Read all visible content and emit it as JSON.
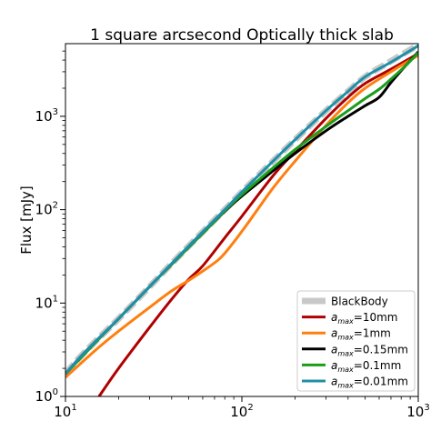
{
  "chart_data": {
    "type": "line",
    "title": "1 square arcsecond Optically thick slab",
    "xlabel": "",
    "ylabel": "Flux [mJy]",
    "xscale": "log",
    "yscale": "log",
    "xlim": [
      10,
      1000
    ],
    "ylim": [
      1,
      6000
    ],
    "x_ticks": [
      {
        "value": 10,
        "base": "10",
        "exp": "1"
      },
      {
        "value": 100,
        "base": "10",
        "exp": "2"
      },
      {
        "value": 1000,
        "base": "10",
        "exp": "3"
      }
    ],
    "y_ticks": [
      {
        "value": 1,
        "base": "10",
        "exp": "0"
      },
      {
        "value": 10,
        "base": "10",
        "exp": "1"
      },
      {
        "value": 100,
        "base": "10",
        "exp": "2"
      },
      {
        "value": 1000,
        "base": "10",
        "exp": "3"
      }
    ],
    "grid": false,
    "legend_position": "lower-right",
    "series": [
      {
        "name": "BlackBody",
        "label_text": "BlackBody",
        "color": "#c8c8c8",
        "style": "dashed-thick",
        "points": [
          [
            10,
            1.75
          ],
          [
            12,
            2.6
          ],
          [
            15,
            4.0
          ],
          [
            20,
            6.8
          ],
          [
            30,
            15
          ],
          [
            40,
            26.5
          ],
          [
            60,
            58
          ],
          [
            80,
            100
          ],
          [
            100,
            155
          ],
          [
            150,
            330
          ],
          [
            200,
            560
          ],
          [
            300,
            1150
          ],
          [
            400,
            1850
          ],
          [
            500,
            2650
          ],
          [
            700,
            3900
          ],
          [
            1000,
            5800
          ]
        ]
      },
      {
        "name": "a_max=10mm",
        "label_prefix": "a",
        "label_sub": "max",
        "label_suffix": "=10mm",
        "color": "#b00000",
        "style": "solid",
        "points": [
          [
            15.5,
            1.0
          ],
          [
            20,
            2.0
          ],
          [
            30,
            5.5
          ],
          [
            40,
            11
          ],
          [
            50,
            18
          ],
          [
            60,
            25
          ],
          [
            80,
            50
          ],
          [
            100,
            85
          ],
          [
            150,
            230
          ],
          [
            200,
            420
          ],
          [
            300,
            950
          ],
          [
            400,
            1600
          ],
          [
            500,
            2250
          ],
          [
            700,
            3200
          ],
          [
            1000,
            4700
          ]
        ]
      },
      {
        "name": "a_max=1mm",
        "label_prefix": "a",
        "label_sub": "max",
        "label_suffix": "=1mm",
        "color": "#ff7f0e",
        "style": "solid",
        "points": [
          [
            10,
            1.6
          ],
          [
            15,
            3.2
          ],
          [
            20,
            5.0
          ],
          [
            30,
            9.0
          ],
          [
            40,
            13.5
          ],
          [
            50,
            17.5
          ],
          [
            60,
            22
          ],
          [
            75,
            30
          ],
          [
            90,
            45
          ],
          [
            110,
            75
          ],
          [
            150,
            170
          ],
          [
            200,
            330
          ],
          [
            300,
            800
          ],
          [
            400,
            1400
          ],
          [
            500,
            2000
          ],
          [
            700,
            3000
          ],
          [
            1000,
            4500
          ]
        ]
      },
      {
        "name": "a_max=0.15mm",
        "label_prefix": "a",
        "label_sub": "max",
        "label_suffix": "=0.15mm",
        "color": "#000000",
        "style": "solid",
        "points": [
          [
            10,
            1.75
          ],
          [
            15,
            3.9
          ],
          [
            20,
            6.8
          ],
          [
            30,
            15
          ],
          [
            40,
            26
          ],
          [
            60,
            56
          ],
          [
            80,
            96
          ],
          [
            100,
            140
          ],
          [
            150,
            260
          ],
          [
            200,
            400
          ],
          [
            300,
            700
          ],
          [
            400,
            1000
          ],
          [
            500,
            1300
          ],
          [
            600,
            1600
          ],
          [
            700,
            2300
          ],
          [
            850,
            3500
          ],
          [
            1000,
            4900
          ]
        ]
      },
      {
        "name": "a_max=0.1mm",
        "label_prefix": "a",
        "label_sub": "max",
        "label_suffix": "=0.1mm",
        "color": "#1a9e1a",
        "style": "solid",
        "points": [
          [
            10,
            1.75
          ],
          [
            15,
            3.9
          ],
          [
            20,
            6.8
          ],
          [
            30,
            15
          ],
          [
            40,
            26
          ],
          [
            60,
            56
          ],
          [
            80,
            97
          ],
          [
            100,
            145
          ],
          [
            150,
            280
          ],
          [
            200,
            440
          ],
          [
            300,
            780
          ],
          [
            400,
            1150
          ],
          [
            500,
            1550
          ],
          [
            600,
            1950
          ],
          [
            700,
            2500
          ],
          [
            850,
            3500
          ],
          [
            1000,
            4800
          ]
        ]
      },
      {
        "name": "a_max=0.01mm",
        "label_prefix": "a",
        "label_sub": "max",
        "label_suffix": "=0.01mm",
        "color": "#1f8fa8",
        "style": "solid",
        "points": [
          [
            10,
            1.75
          ],
          [
            12,
            2.6
          ],
          [
            15,
            4.0
          ],
          [
            20,
            6.8
          ],
          [
            30,
            15
          ],
          [
            40,
            26.5
          ],
          [
            60,
            58
          ],
          [
            80,
            100
          ],
          [
            100,
            155
          ],
          [
            150,
            330
          ],
          [
            200,
            560
          ],
          [
            300,
            1150
          ],
          [
            400,
            1850
          ],
          [
            500,
            2650
          ],
          [
            700,
            3800
          ],
          [
            1000,
            5700
          ]
        ]
      }
    ]
  }
}
